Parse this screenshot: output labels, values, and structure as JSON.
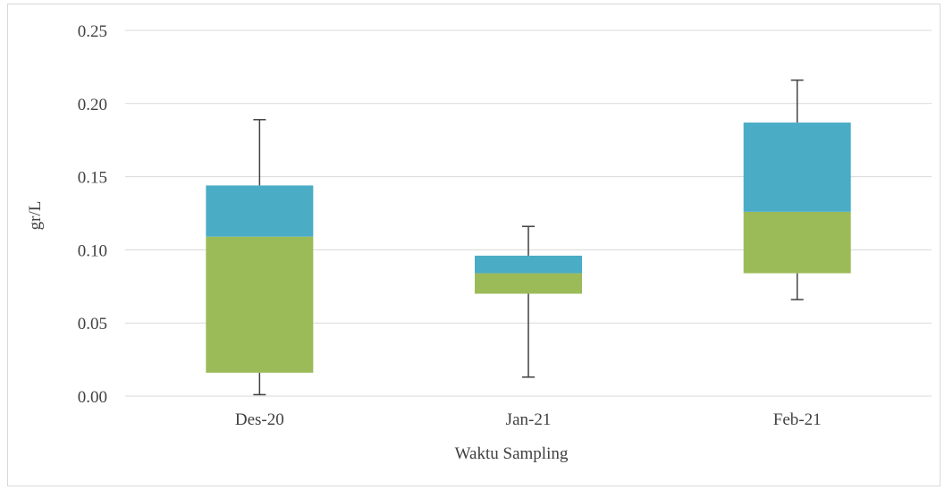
{
  "chart_data": {
    "type": "box",
    "title": "",
    "xlabel": "Waktu Sampling",
    "ylabel": "gr/L",
    "ylim": [
      0,
      0.25
    ],
    "yticks": [
      "0.00",
      "0.05",
      "0.10",
      "0.15",
      "0.20",
      "0.25"
    ],
    "categories": [
      "Des-20",
      "Jan-21",
      "Feb-21"
    ],
    "boxes": [
      {
        "category": "Des-20",
        "min": 0.001,
        "q1": 0.016,
        "median": 0.109,
        "q3": 0.144,
        "max": 0.189
      },
      {
        "category": "Jan-21",
        "min": 0.013,
        "q1": 0.07,
        "median": 0.084,
        "q3": 0.096,
        "max": 0.116
      },
      {
        "category": "Feb-21",
        "min": 0.066,
        "q1": 0.084,
        "median": 0.126,
        "q3": 0.187,
        "max": 0.216
      }
    ],
    "colors": {
      "lower_box": "#9bbb59",
      "upper_box": "#4bacc6",
      "whisker": "#404040",
      "grid": "#d9d9d9"
    },
    "grid": true,
    "legend": "none"
  }
}
